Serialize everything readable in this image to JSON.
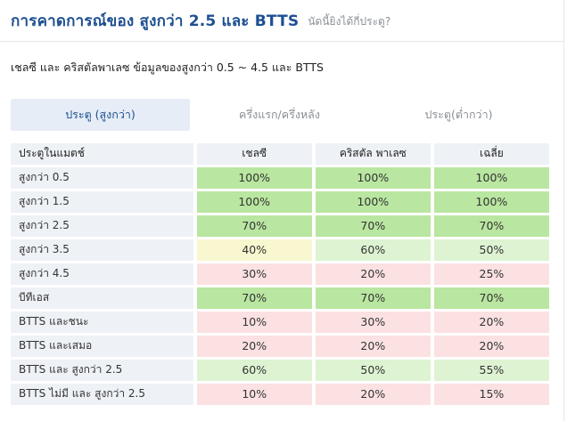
{
  "header": {
    "title": "การคาดการณ์ของ สูงกว่า 2.5 และ BTTS",
    "subtitle": "นัดนี้ยิงได้กี่ประตู?"
  },
  "description": "เชลซี และ คริสตัลพาเลซ ข้อมูลของสูงกว่า 0.5 ~ 4.5 และ BTTS",
  "tabs": [
    {
      "label": "ประตู (สูงกว่า)",
      "active": true
    },
    {
      "label": "ครึ่งแรก/ครึ่งหลัง",
      "active": false
    },
    {
      "label": "ประตู(ต่ำกว่า)",
      "active": false
    }
  ],
  "table": {
    "headers": [
      "ประตูในแมตช์",
      "เชลซี",
      "คริสตัล พาเลซ",
      "เฉลี่ย"
    ],
    "rows": [
      {
        "label": "สูงกว่า 0.5",
        "values": [
          "100%",
          "100%",
          "100%"
        ],
        "colors": [
          "#b9e6a0",
          "#b9e6a0",
          "#b9e6a0"
        ]
      },
      {
        "label": "สูงกว่า 1.5",
        "values": [
          "100%",
          "100%",
          "100%"
        ],
        "colors": [
          "#b9e6a0",
          "#b9e6a0",
          "#b9e6a0"
        ]
      },
      {
        "label": "สูงกว่า 2.5",
        "values": [
          "70%",
          "70%",
          "70%"
        ],
        "colors": [
          "#b9e6a0",
          "#b9e6a0",
          "#b9e6a0"
        ]
      },
      {
        "label": "สูงกว่า 3.5",
        "values": [
          "40%",
          "60%",
          "50%"
        ],
        "colors": [
          "#f8f7cf",
          "#ddf3d2",
          "#ddf3d2"
        ]
      },
      {
        "label": "สูงกว่า 4.5",
        "values": [
          "30%",
          "20%",
          "25%"
        ],
        "colors": [
          "#fbe1e1",
          "#fbe1e1",
          "#fbe1e1"
        ]
      },
      {
        "label": "บีทีเอส",
        "values": [
          "70%",
          "70%",
          "70%"
        ],
        "colors": [
          "#b9e6a0",
          "#b9e6a0",
          "#b9e6a0"
        ]
      },
      {
        "label": "BTTS และชนะ",
        "values": [
          "10%",
          "30%",
          "20%"
        ],
        "colors": [
          "#fbe1e1",
          "#fbe1e1",
          "#fbe1e1"
        ]
      },
      {
        "label": "BTTS และเสมอ",
        "values": [
          "20%",
          "20%",
          "20%"
        ],
        "colors": [
          "#fbe1e1",
          "#fbe1e1",
          "#fbe1e1"
        ]
      },
      {
        "label": "BTTS และ สูงกว่า 2.5",
        "values": [
          "60%",
          "50%",
          "55%"
        ],
        "colors": [
          "#ddf3d2",
          "#ddf3d2",
          "#ddf3d2"
        ]
      },
      {
        "label": "BTTS ไม่มี และ สูงกว่า 2.5",
        "values": [
          "10%",
          "20%",
          "15%"
        ],
        "colors": [
          "#fbe1e1",
          "#fbe1e1",
          "#fbe1e1"
        ]
      }
    ]
  }
}
